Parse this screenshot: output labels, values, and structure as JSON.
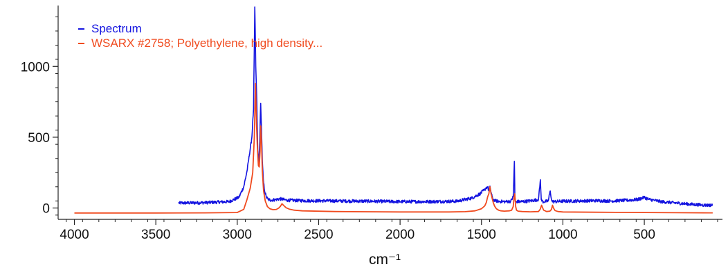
{
  "chart_data": {
    "type": "line",
    "title": "",
    "xlabel": "cm⁻¹",
    "ylabel": "",
    "xlim": [
      4100,
      20
    ],
    "ylim": [
      -80,
      1430
    ],
    "x_reversed": true,
    "grid": false,
    "legend_position": "top-left",
    "x_ticks": [
      4000,
      3500,
      3000,
      2500,
      2000,
      1500,
      1000,
      500
    ],
    "x_tick_labels": [
      "4000",
      "3500",
      "3000",
      "2500",
      "2000",
      "1500",
      "1000",
      "500"
    ],
    "y_ticks": [
      0,
      500,
      1000
    ],
    "y_tick_labels": [
      "0",
      "500",
      "1000"
    ],
    "series": [
      {
        "name": "Spectrum",
        "color": "#1414e0",
        "noise": true,
        "x": [
          3360,
          3200,
          3050,
          2990,
          2960,
          2940,
          2925,
          2910,
          2900,
          2892,
          2886,
          2880,
          2874,
          2868,
          2862,
          2856,
          2851,
          2846,
          2840,
          2832,
          2822,
          2810,
          2790,
          2760,
          2740,
          2725,
          2710,
          2690,
          2600,
          2400,
          2200,
          2000,
          1800,
          1650,
          1560,
          1510,
          1480,
          1470,
          1462,
          1455,
          1447,
          1441,
          1435,
          1428,
          1420,
          1412,
          1400,
          1380,
          1350,
          1320,
          1305,
          1298,
          1295,
          1292,
          1288,
          1280,
          1250,
          1200,
          1150,
          1138,
          1133,
          1128,
          1123,
          1110,
          1090,
          1078,
          1068,
          1060,
          1050,
          1000,
          900,
          800,
          700,
          600,
          540,
          500,
          470,
          440,
          400,
          350,
          300,
          250,
          200,
          150,
          120,
          80
        ],
        "y": [
          35,
          38,
          45,
          75,
          150,
          260,
          380,
          500,
          700,
          1420,
          1000,
          750,
          400,
          320,
          470,
          740,
          560,
          330,
          200,
          120,
          80,
          60,
          55,
          60,
          65,
          62,
          58,
          55,
          52,
          50,
          48,
          45,
          45,
          48,
          70,
          100,
          130,
          145,
          150,
          120,
          150,
          110,
          80,
          60,
          55,
          50,
          48,
          46,
          45,
          48,
          80,
          330,
          80,
          48,
          45,
          45,
          45,
          50,
          60,
          200,
          60,
          50,
          45,
          45,
          50,
          120,
          50,
          45,
          45,
          48,
          50,
          52,
          50,
          55,
          60,
          75,
          60,
          55,
          45,
          40,
          35,
          30,
          25,
          22,
          20,
          20
        ]
      },
      {
        "name": "WSARX #2758; Polyethylene, high density...",
        "color": "#f04a1e",
        "noise": false,
        "x": [
          4000,
          3500,
          3200,
          3000,
          2960,
          2940,
          2920,
          2905,
          2895,
          2888,
          2882,
          2876,
          2870,
          2865,
          2860,
          2856,
          2851,
          2846,
          2838,
          2828,
          2815,
          2800,
          2780,
          2760,
          2745,
          2735,
          2725,
          2715,
          2700,
          2680,
          2650,
          2600,
          2400,
          2000,
          1700,
          1600,
          1540,
          1500,
          1480,
          1470,
          1462,
          1455,
          1448,
          1441,
          1435,
          1428,
          1420,
          1412,
          1405,
          1395,
          1380,
          1360,
          1330,
          1315,
          1305,
          1300,
          1296,
          1293,
          1290,
          1285,
          1275,
          1250,
          1200,
          1150,
          1140,
          1135,
          1131,
          1126,
          1118,
          1100,
          1080,
          1070,
          1064,
          1058,
          1048,
          1030,
          1000,
          800,
          500,
          300,
          100,
          80
        ],
        "y": [
          -35,
          -35,
          -34,
          -32,
          -10,
          60,
          140,
          250,
          500,
          880,
          600,
          420,
          300,
          290,
          400,
          580,
          460,
          260,
          120,
          50,
          10,
          -5,
          -12,
          -10,
          0,
          12,
          30,
          18,
          2,
          -8,
          -15,
          -20,
          -25,
          -28,
          -28,
          -26,
          -20,
          -5,
          15,
          40,
          80,
          100,
          150,
          100,
          70,
          40,
          15,
          0,
          -8,
          -15,
          -20,
          -22,
          -20,
          -15,
          10,
          70,
          100,
          60,
          10,
          -15,
          -22,
          -25,
          -27,
          -25,
          -10,
          5,
          20,
          5,
          -15,
          -25,
          -22,
          -10,
          20,
          0,
          -18,
          -25,
          -28,
          -30,
          -32,
          -33,
          -34,
          -34
        ]
      }
    ]
  }
}
